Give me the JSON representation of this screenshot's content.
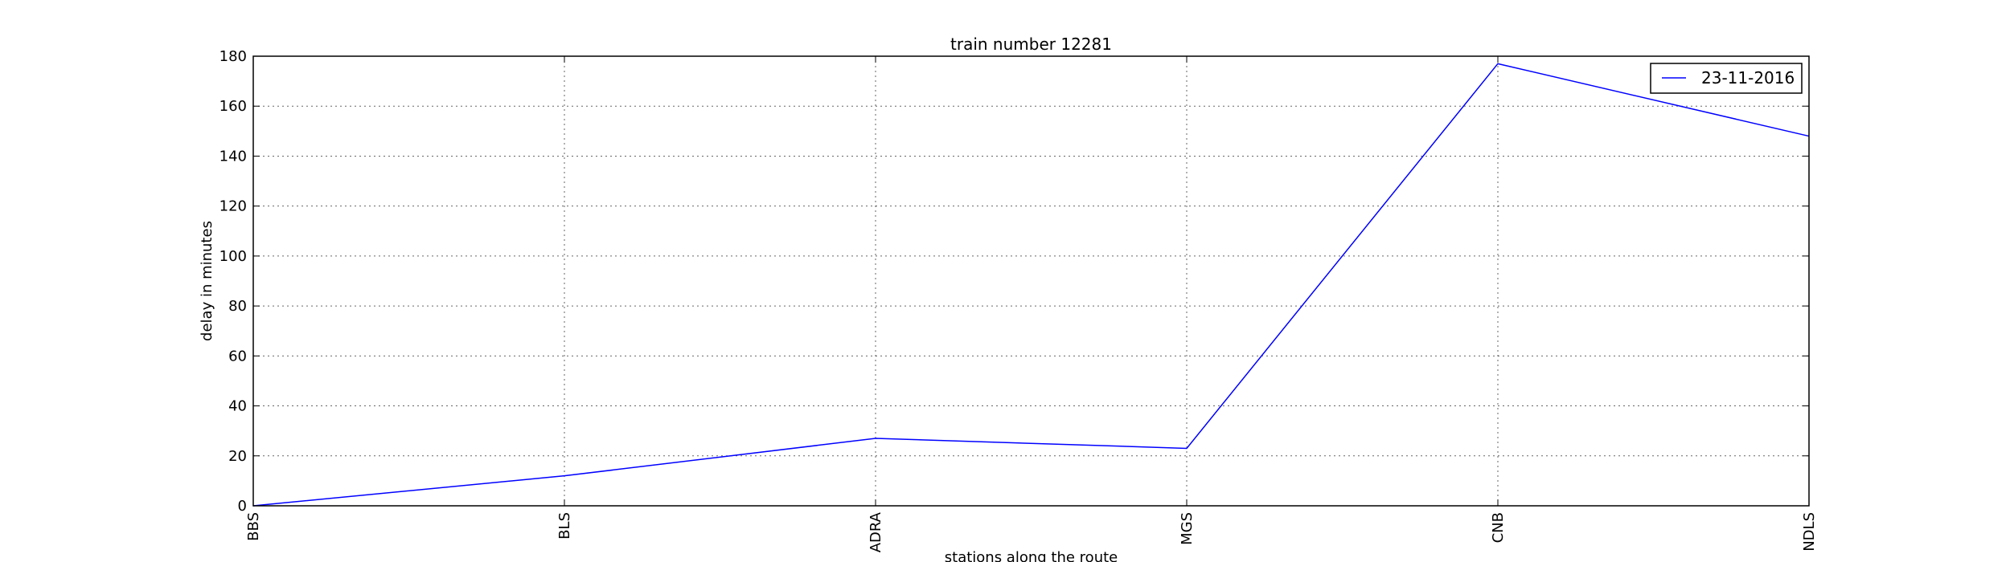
{
  "chart_data": {
    "type": "line",
    "title": "train number 12281",
    "xlabel": "stations along the route",
    "ylabel": "delay in minutes",
    "categories": [
      "BBS",
      "BLS",
      "ADRA",
      "MGS",
      "CNB",
      "NDLS"
    ],
    "series": [
      {
        "name": "23-11-2016",
        "values": [
          0,
          12,
          27,
          23,
          177,
          148
        ],
        "color": "#0000ff"
      }
    ],
    "ylim": [
      0,
      180
    ],
    "yticks": [
      0,
      20,
      40,
      60,
      80,
      100,
      120,
      140,
      160,
      180
    ],
    "grid": true,
    "legend": "top-right"
  }
}
